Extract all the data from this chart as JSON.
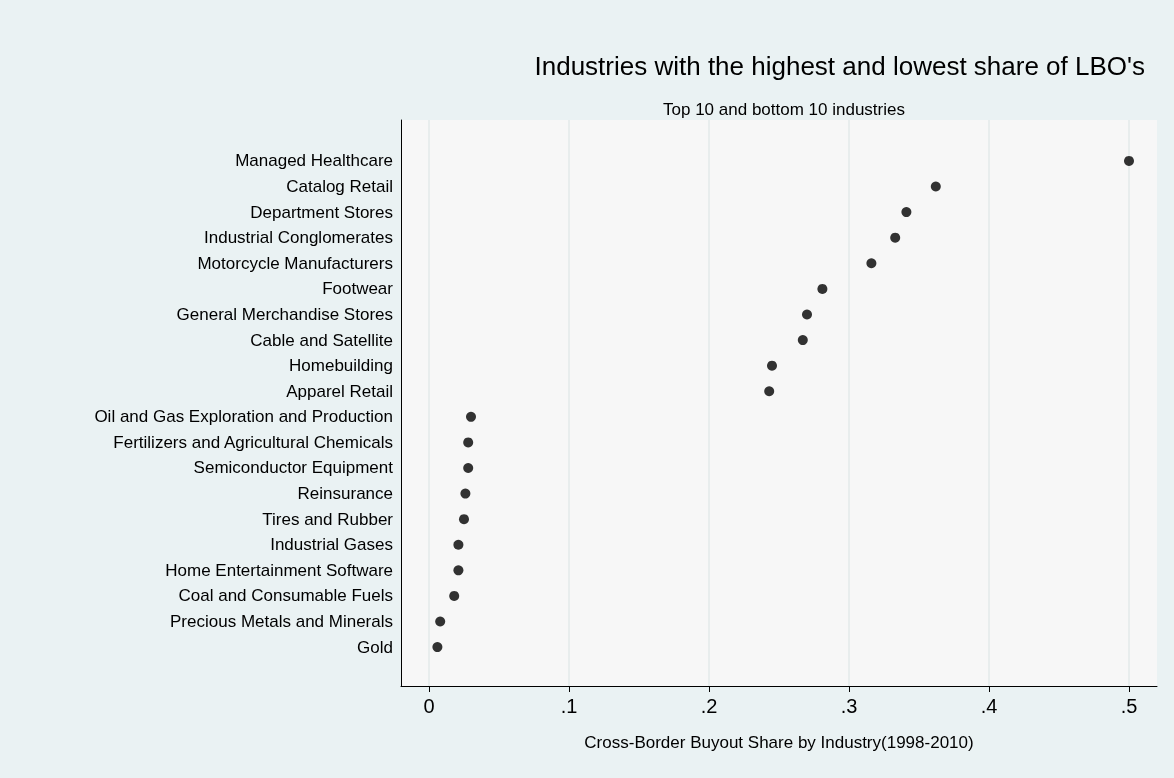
{
  "chart_data": {
    "type": "scatter",
    "title": "Industries with the highest and lowest share of LBO's",
    "subtitle": "Top 10 and bottom 10 industries",
    "xlabel": "Cross-Border Buyout Share by Industry(1998-2010)",
    "orientation": "horizontal",
    "categories": [
      "Managed Healthcare",
      "Catalog Retail",
      "Department Stores",
      "Industrial Conglomerates",
      "Motorcycle Manufacturers",
      "Footwear",
      "General Merchandise Stores",
      "Cable and Satellite",
      "Homebuilding",
      "Apparel Retail",
      "Oil and Gas Exploration and Production",
      "Fertilizers and Agricultural Chemicals",
      "Semiconductor Equipment",
      "Reinsurance",
      "Tires and Rubber",
      "Industrial Gases",
      "Home Entertainment Software",
      "Coal and Consumable Fuels",
      "Precious Metals and Minerals",
      "Gold"
    ],
    "values": [
      0.5,
      0.362,
      0.341,
      0.333,
      0.316,
      0.281,
      0.27,
      0.267,
      0.245,
      0.243,
      0.03,
      0.028,
      0.028,
      0.026,
      0.025,
      0.021,
      0.021,
      0.018,
      0.008,
      0.006
    ],
    "color": "#000000",
    "marker": "circle",
    "xlim": [
      -0.02,
      0.52
    ],
    "xticks": [
      0,
      {
        "value": 0.1,
        "label": ".1"
      },
      {
        "value": 0.2,
        "label": ".2"
      },
      {
        "value": 0.3,
        "label": ".3"
      },
      {
        "value": 0.4,
        "label": ".4"
      },
      {
        "value": 0.5,
        "label": ".5"
      }
    ],
    "grid": "x"
  }
}
